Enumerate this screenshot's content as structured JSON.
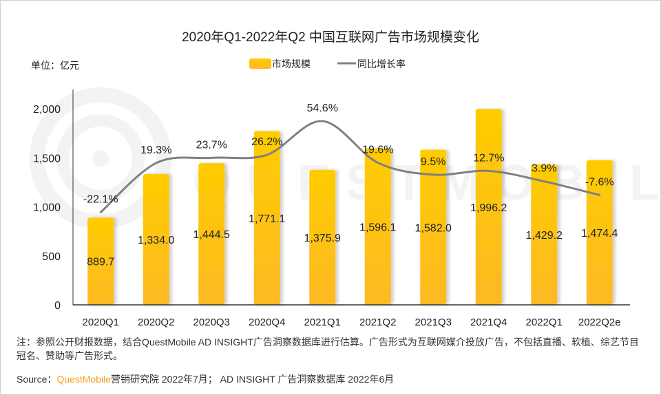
{
  "chart_data": {
    "type": "bar+line",
    "title": "2020年Q1-2022年Q2 中国互联网广告市场规模变化",
    "unit_label": "单位：亿元",
    "categories": [
      "2020Q1",
      "2020Q2",
      "2020Q3",
      "2020Q4",
      "2021Q1",
      "2021Q2",
      "2021Q3",
      "2021Q4",
      "2022Q1",
      "2022Q2e"
    ],
    "series": [
      {
        "name": "市场规模",
        "type": "bar",
        "values": [
          889.7,
          1334.0,
          1444.5,
          1771.1,
          1375.9,
          1596.1,
          1582.0,
          1996.2,
          1429.2,
          1474.4
        ],
        "labels": [
          "889.7",
          "1,334.0",
          "1,444.5",
          "1,771.1",
          "1,375.9",
          "1,596.1",
          "1,582.0",
          "1,996.2",
          "1,429.2",
          "1,474.4"
        ],
        "color_top": "#ffcc00",
        "color_bottom": "#fdb924"
      },
      {
        "name": "同比增长率",
        "type": "line",
        "axis": "secondary-hidden",
        "values": [
          -22.1,
          19.3,
          23.7,
          26.2,
          54.6,
          19.6,
          9.5,
          12.7,
          3.9,
          -7.6
        ],
        "labels": [
          "-22.1%",
          "19.3%",
          "23.7%",
          "26.2%",
          "54.6%",
          "19.6%",
          "9.5%",
          "12.7%",
          "3.9%",
          "-7.6%"
        ],
        "color": "#808080",
        "smooth": true
      }
    ],
    "ylim": [
      0,
      2000
    ],
    "y2lim": [
      -100,
      65
    ],
    "yticks": [
      0,
      500,
      1000,
      1500,
      2000
    ],
    "ytick_labels": [
      "0",
      "500",
      "1,000",
      "1,500",
      "2,000"
    ],
    "grid": false,
    "legend_position": "top-center",
    "watermark": "QUESTMOBILE"
  },
  "footer": {
    "note": "注：参照公开财报数据，结合QuestMobile AD INSIGHT广告洞察数据库进行估算。广告形式为互联网媒介投放广告，不包括直播、软植、综艺节目冠名、赞助等广告形式。",
    "source_label": "Source：",
    "source_brand": "QuestMobile",
    "source_rest": "营销研究院 2022年7月； AD INSIGHT 广告洞察数据库 2022年6月"
  }
}
